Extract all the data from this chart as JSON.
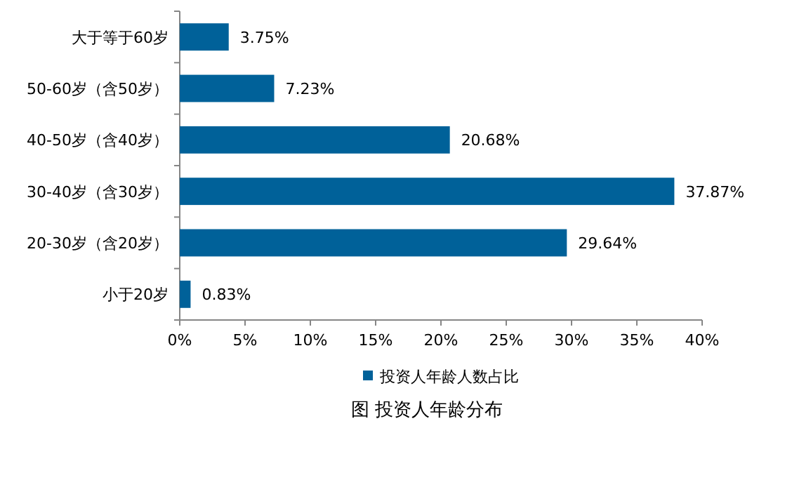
{
  "chart_data": {
    "type": "bar",
    "orientation": "horizontal",
    "title": "图 投资人年龄分布",
    "categories": [
      "大于等于60岁",
      "50-60岁（含50岁）",
      "40-50岁（含40岁）",
      "30-40岁（含30岁）",
      "20-30岁（含20岁）",
      "小于20岁"
    ],
    "series": [
      {
        "name": "投资人年龄人数占比",
        "color": "#006199",
        "values": [
          3.75,
          7.23,
          20.68,
          37.87,
          29.64,
          0.83
        ],
        "value_labels": [
          "3.75%",
          "7.23%",
          "20.68%",
          "37.87%",
          "29.64%",
          "0.83%"
        ]
      }
    ],
    "xlim": [
      0,
      40
    ],
    "xticks": [
      {
        "value": 0,
        "label": "0%"
      },
      {
        "value": 5,
        "label": "5%"
      },
      {
        "value": 10,
        "label": "10%"
      },
      {
        "value": 15,
        "label": "15%"
      },
      {
        "value": 20,
        "label": "20%"
      },
      {
        "value": 25,
        "label": "25%"
      },
      {
        "value": 30,
        "label": "30%"
      },
      {
        "value": 35,
        "label": "35%"
      },
      {
        "value": 40,
        "label": "40%"
      }
    ],
    "grid": false,
    "legend": "bottom"
  }
}
